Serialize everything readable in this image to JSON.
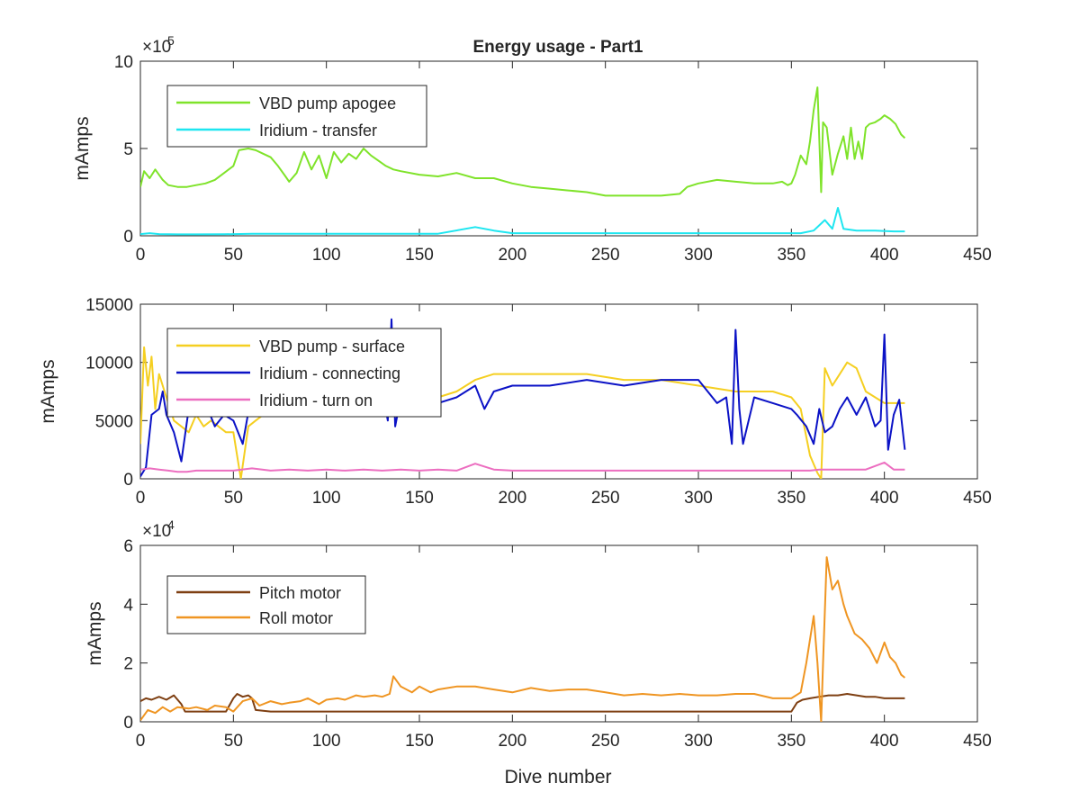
{
  "title": "Energy usage - Part1",
  "xlabel": "Dive number",
  "chart_data": [
    {
      "type": "line",
      "title": "Energy usage - Part1",
      "xlabel": "",
      "ylabel": "mAmps",
      "exponent_label": "×10",
      "exponent_power": "5",
      "tick_scale": 100000,
      "xlim": [
        0,
        450
      ],
      "ylim": [
        0,
        1000000
      ],
      "xticks": [
        0,
        50,
        100,
        150,
        200,
        250,
        300,
        350,
        400,
        450
      ],
      "yticks": [
        0,
        500000,
        1000000
      ],
      "ytick_labels": [
        "0",
        "5",
        "10"
      ],
      "legend_position": "upper-left",
      "series": [
        {
          "name": "VBD pump apogee",
          "color": "#7fe32a",
          "x": [
            0,
            2,
            5,
            8,
            12,
            15,
            20,
            25,
            30,
            35,
            40,
            45,
            50,
            53,
            58,
            62,
            66,
            70,
            74,
            78,
            80,
            84,
            88,
            92,
            96,
            100,
            104,
            108,
            112,
            116,
            120,
            124,
            128,
            132,
            136,
            140,
            150,
            160,
            170,
            180,
            190,
            200,
            210,
            220,
            230,
            240,
            250,
            260,
            270,
            280,
            290,
            294,
            300,
            310,
            320,
            330,
            340,
            345,
            348,
            350,
            352,
            355,
            358,
            360,
            362,
            364,
            366,
            367,
            369,
            372,
            375,
            378,
            380,
            382,
            384,
            386,
            388,
            390,
            392,
            395,
            398,
            400,
            403,
            406,
            409,
            411
          ],
          "y": [
            280000,
            370000,
            330000,
            380000,
            320000,
            290000,
            280000,
            280000,
            290000,
            300000,
            320000,
            360000,
            400000,
            490000,
            500000,
            490000,
            470000,
            450000,
            400000,
            340000,
            310000,
            360000,
            480000,
            380000,
            460000,
            330000,
            480000,
            420000,
            470000,
            440000,
            500000,
            460000,
            430000,
            400000,
            380000,
            370000,
            350000,
            340000,
            360000,
            330000,
            330000,
            300000,
            280000,
            270000,
            260000,
            250000,
            230000,
            230000,
            230000,
            230000,
            240000,
            280000,
            300000,
            320000,
            310000,
            300000,
            300000,
            310000,
            290000,
            300000,
            350000,
            460000,
            410000,
            540000,
            720000,
            850000,
            250000,
            650000,
            620000,
            350000,
            470000,
            570000,
            440000,
            620000,
            440000,
            540000,
            440000,
            620000,
            640000,
            650000,
            670000,
            690000,
            670000,
            640000,
            580000,
            560000
          ]
        },
        {
          "name": "Iridium - transfer",
          "color": "#1ee6f0",
          "x": [
            0,
            5,
            10,
            20,
            30,
            45,
            60,
            80,
            100,
            120,
            140,
            160,
            180,
            190,
            200,
            220,
            240,
            260,
            280,
            300,
            320,
            340,
            355,
            362,
            368,
            372,
            375,
            378,
            385,
            395,
            405,
            411
          ],
          "y": [
            10000,
            15000,
            10000,
            8000,
            8000,
            9000,
            12000,
            12000,
            12000,
            12000,
            12000,
            12000,
            50000,
            30000,
            15000,
            15000,
            15000,
            15000,
            15000,
            15000,
            15000,
            15000,
            15000,
            30000,
            90000,
            40000,
            160000,
            40000,
            30000,
            30000,
            25000,
            25000
          ]
        }
      ]
    },
    {
      "type": "line",
      "title": "",
      "xlabel": "",
      "ylabel": "mAmps",
      "xlim": [
        0,
        450
      ],
      "ylim": [
        0,
        15000
      ],
      "xticks": [
        0,
        50,
        100,
        150,
        200,
        250,
        300,
        350,
        400,
        450
      ],
      "yticks": [
        0,
        5000,
        10000,
        15000
      ],
      "ytick_labels": [
        "0",
        "5000",
        "10000",
        "15000"
      ],
      "legend_position": "upper-left",
      "series": [
        {
          "name": "VBD pump - surface",
          "color": "#f5cf21",
          "x": [
            0,
            2,
            4,
            6,
            8,
            10,
            14,
            18,
            22,
            26,
            30,
            34,
            38,
            42,
            46,
            50,
            54,
            58,
            62,
            66,
            70,
            80,
            90,
            100,
            110,
            120,
            130,
            140,
            150,
            160,
            170,
            180,
            190,
            200,
            220,
            240,
            260,
            280,
            300,
            320,
            340,
            350,
            355,
            360,
            364,
            366,
            368,
            372,
            376,
            380,
            385,
            390,
            400,
            405,
            411
          ],
          "y": [
            3000,
            11300,
            8000,
            10500,
            6000,
            9000,
            7000,
            5000,
            4500,
            4000,
            5500,
            4500,
            5000,
            4500,
            4000,
            4000,
            0,
            4500,
            5000,
            5500,
            5500,
            6000,
            6500,
            6500,
            6000,
            5500,
            5500,
            6000,
            6500,
            7000,
            7500,
            8500,
            9000,
            9000,
            9000,
            9000,
            8500,
            8500,
            8000,
            7500,
            7500,
            7000,
            6000,
            2000,
            500,
            0,
            9500,
            8000,
            9000,
            10000,
            9500,
            7500,
            6500,
            6500,
            6500
          ]
        },
        {
          "name": "Iridium - connecting",
          "color": "#0b12c6",
          "x": [
            0,
            3,
            6,
            10,
            12,
            14,
            18,
            22,
            26,
            30,
            35,
            40,
            45,
            50,
            55,
            60,
            63,
            66,
            70,
            80,
            90,
            100,
            110,
            120,
            125,
            130,
            133,
            135,
            137,
            140,
            150,
            160,
            170,
            180,
            185,
            190,
            200,
            220,
            240,
            260,
            280,
            300,
            310,
            315,
            318,
            320,
            322,
            324,
            330,
            340,
            350,
            353,
            358,
            362,
            365,
            368,
            372,
            376,
            380,
            385,
            390,
            395,
            398,
            400,
            402,
            405,
            408,
            411
          ],
          "y": [
            200,
            1000,
            5500,
            6000,
            7500,
            5500,
            4000,
            1500,
            6000,
            5500,
            6500,
            4500,
            5500,
            5000,
            3000,
            7500,
            6500,
            6000,
            7000,
            5500,
            6000,
            6000,
            6500,
            7000,
            6000,
            7500,
            5000,
            13700,
            4500,
            7000,
            7000,
            6500,
            7000,
            8000,
            6000,
            7500,
            8000,
            8000,
            8500,
            8000,
            8500,
            8500,
            6500,
            7000,
            3000,
            12800,
            6000,
            3000,
            7000,
            6500,
            6000,
            5500,
            4500,
            3000,
            6000,
            4000,
            4500,
            6000,
            7000,
            5500,
            7000,
            4500,
            5000,
            12400,
            2500,
            5500,
            6800,
            2500
          ]
        },
        {
          "name": "Iridium - turn on",
          "color": "#ec6ec0",
          "x": [
            0,
            5,
            10,
            15,
            20,
            25,
            30,
            40,
            50,
            60,
            70,
            80,
            90,
            100,
            110,
            120,
            130,
            140,
            150,
            160,
            170,
            180,
            190,
            200,
            250,
            300,
            350,
            355,
            360,
            365,
            370,
            375,
            380,
            390,
            400,
            405,
            411
          ],
          "y": [
            800,
            900,
            800,
            700,
            600,
            600,
            700,
            700,
            700,
            900,
            700,
            800,
            700,
            800,
            700,
            800,
            700,
            800,
            700,
            800,
            700,
            1300,
            800,
            700,
            700,
            700,
            700,
            700,
            700,
            800,
            800,
            800,
            800,
            800,
            1400,
            800,
            800
          ]
        }
      ]
    },
    {
      "type": "line",
      "title": "",
      "xlabel": "Dive number",
      "ylabel": "mAmps",
      "exponent_label": "×10",
      "exponent_power": "4",
      "tick_scale": 10000,
      "xlim": [
        0,
        450
      ],
      "ylim": [
        0,
        60000
      ],
      "xticks": [
        0,
        50,
        100,
        150,
        200,
        250,
        300,
        350,
        400,
        450
      ],
      "yticks": [
        0,
        20000,
        40000,
        60000
      ],
      "ytick_labels": [
        "0",
        "2",
        "4",
        "6"
      ],
      "legend_position": "upper-left",
      "series": [
        {
          "name": "Pitch motor",
          "color": "#7e3f12",
          "x": [
            0,
            3,
            6,
            10,
            14,
            18,
            22,
            24,
            30,
            40,
            46,
            50,
            52,
            55,
            58,
            60,
            62,
            70,
            80,
            100,
            120,
            140,
            160,
            180,
            200,
            220,
            240,
            260,
            280,
            300,
            320,
            340,
            350,
            353,
            356,
            360,
            365,
            370,
            375,
            380,
            385,
            390,
            395,
            400,
            405,
            411
          ],
          "y": [
            7000,
            8000,
            7500,
            8500,
            7500,
            9000,
            6000,
            3500,
            3500,
            3500,
            3500,
            8000,
            9500,
            8500,
            9000,
            8000,
            4000,
            3500,
            3500,
            3500,
            3500,
            3500,
            3500,
            3500,
            3500,
            3500,
            3500,
            3500,
            3500,
            3500,
            3500,
            3500,
            3500,
            6500,
            7500,
            8000,
            8500,
            9000,
            9000,
            9500,
            9000,
            8500,
            8500,
            8000,
            8000,
            8000
          ]
        },
        {
          "name": "Roll motor",
          "color": "#ef9522",
          "x": [
            0,
            4,
            8,
            12,
            16,
            20,
            26,
            30,
            36,
            40,
            46,
            50,
            55,
            60,
            64,
            70,
            76,
            80,
            86,
            90,
            96,
            100,
            106,
            110,
            116,
            120,
            126,
            130,
            134,
            136,
            140,
            146,
            150,
            156,
            160,
            170,
            180,
            190,
            200,
            210,
            220,
            230,
            240,
            250,
            260,
            270,
            280,
            290,
            300,
            310,
            320,
            330,
            340,
            350,
            355,
            358,
            362,
            364,
            366,
            367,
            369,
            372,
            375,
            378,
            380,
            384,
            388,
            392,
            396,
            400,
            403,
            406,
            409,
            411
          ],
          "y": [
            500,
            4000,
            3000,
            5000,
            3500,
            5000,
            4500,
            5000,
            4000,
            5500,
            5000,
            3500,
            7000,
            8000,
            5500,
            7000,
            6000,
            6500,
            7000,
            8000,
            6000,
            7500,
            8000,
            7500,
            9000,
            8500,
            9000,
            8500,
            9500,
            15500,
            12000,
            10000,
            12000,
            10000,
            11000,
            12000,
            12000,
            11000,
            10000,
            11500,
            10500,
            11000,
            11000,
            10000,
            9000,
            9500,
            9000,
            9500,
            9000,
            9000,
            9500,
            9500,
            8000,
            8000,
            10000,
            20000,
            36000,
            20000,
            0,
            20000,
            56000,
            45000,
            48000,
            40000,
            36000,
            30000,
            28000,
            25000,
            20000,
            27000,
            22000,
            20000,
            16000,
            15000
          ]
        }
      ]
    }
  ]
}
